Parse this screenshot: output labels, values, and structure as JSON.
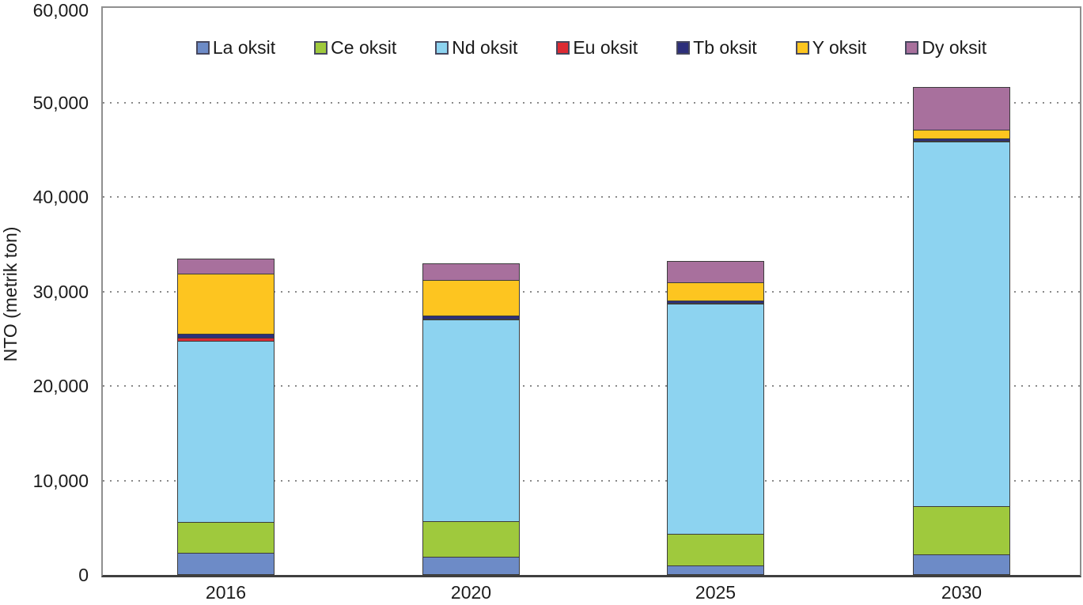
{
  "yaxis": {
    "label": "NTO (metrik ton)",
    "max": 60000,
    "ticks": [
      {
        "value": 0,
        "label": "0"
      },
      {
        "value": 10000,
        "label": "10,000"
      },
      {
        "value": 20000,
        "label": "20,000"
      },
      {
        "value": 30000,
        "label": "30,000"
      },
      {
        "value": 40000,
        "label": "40,000"
      },
      {
        "value": 50000,
        "label": "50,000"
      },
      {
        "value": 60000,
        "label": "60,000"
      }
    ]
  },
  "xaxis": {
    "categories": [
      "2016",
      "2020",
      "2025",
      "2030"
    ]
  },
  "colors": {
    "segment_border": "#3c3c3c",
    "gridline": "#8a8a8a",
    "frame": "#8f8f8f",
    "axis_line": "#3f3f3f"
  },
  "chart_data": {
    "type": "bar",
    "stacked": true,
    "title": "",
    "xlabel": "",
    "ylabel": "NTO (metrik ton)",
    "ylim": [
      0,
      60000
    ],
    "grid": "horizontal dotted at 10,000 intervals",
    "legend_position": "top inside plot, single row",
    "categories": [
      "2016",
      "2020",
      "2025",
      "2030"
    ],
    "series": [
      {
        "name": "La oksit",
        "color": "#6d8bc7",
        "values": [
          2350,
          1900,
          1000,
          2200
        ]
      },
      {
        "name": "Ce oksit",
        "color": "#9fc93d",
        "values": [
          3350,
          3900,
          3400,
          5200
        ]
      },
      {
        "name": "Nd oksit",
        "color": "#8dd3f0",
        "values": [
          19200,
          21400,
          24450,
          38600
        ]
      },
      {
        "name": "Eu oksit",
        "color": "#dc2a33",
        "values": [
          450,
          100,
          100,
          100
        ]
      },
      {
        "name": "Tb oksit",
        "color": "#2d2f7b",
        "values": [
          500,
          450,
          400,
          400
        ]
      },
      {
        "name": "Y oksit",
        "color": "#fdc520",
        "values": [
          6450,
          3800,
          1950,
          1000
        ]
      },
      {
        "name": "Dy oksit",
        "color": "#a8709d",
        "values": [
          1650,
          1900,
          2400,
          4600
        ]
      }
    ],
    "totals": [
      33950,
      33450,
      33700,
      52100
    ]
  }
}
